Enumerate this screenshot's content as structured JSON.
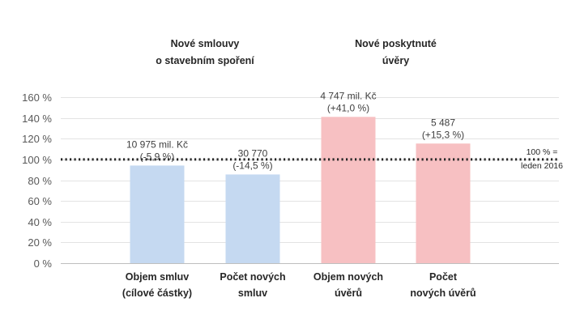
{
  "chart_data": {
    "type": "bar",
    "categories": [
      [
        "Objem smluv",
        "(cílové částky)"
      ],
      [
        "Počet  nových",
        "smluv"
      ],
      [
        "Objem nových",
        "úvěrů"
      ],
      [
        "Počet",
        "nových úvěrů"
      ]
    ],
    "values": [
      94.1,
      85.5,
      141.0,
      115.3
    ],
    "data_labels": [
      [
        "10 975 mil. Kč",
        "(-5,9 %)"
      ],
      [
        "30 770",
        "(-14,5 %)"
      ],
      [
        "4 747 mil. Kč",
        "(+41,0 %)"
      ],
      [
        "5 487",
        "(+15,3 %)"
      ]
    ],
    "colors": [
      "#c5d9f1",
      "#c5d9f1",
      "#f7c0c2",
      "#f7c0c2"
    ],
    "groups": [
      {
        "label": [
          "Nové smlouvy",
          "o stavebním spoření"
        ],
        "categories": [
          0,
          1
        ]
      },
      {
        "label": [
          "Nové poskytnuté",
          "úvěry"
        ],
        "categories": [
          2,
          3
        ]
      }
    ],
    "ylim": [
      0,
      160
    ],
    "ytick_values": [
      0,
      20,
      40,
      60,
      80,
      100,
      120,
      140,
      160
    ],
    "ytick_labels": [
      "0 %",
      "20 %",
      "40 %",
      "60 %",
      "80 %",
      "100 %",
      "120 %",
      "140 %",
      "160 %"
    ],
    "reference_line": {
      "value": 100,
      "style": "dotted",
      "label": [
        "100 % =",
        "leden 2016"
      ]
    },
    "grid": true,
    "legend": "none",
    "title": "",
    "xlabel": "",
    "ylabel": ""
  }
}
